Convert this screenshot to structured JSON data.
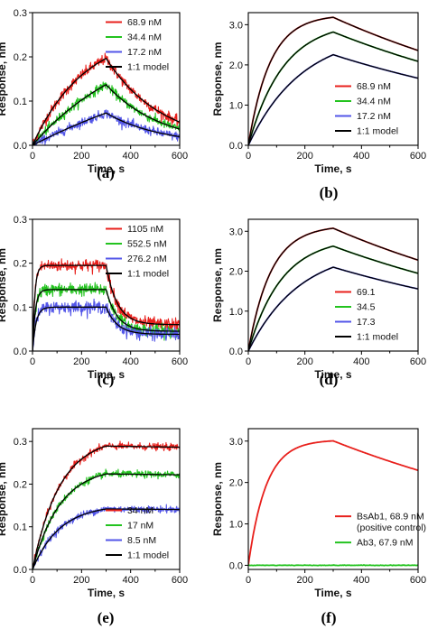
{
  "chart_data": [
    {
      "panel": "(a)",
      "type": "line",
      "xlabel": "Time, s",
      "ylabel": "Response, nm",
      "xlim": [
        0,
        600
      ],
      "ylim": [
        0,
        0.3
      ],
      "xticks": [
        0,
        200,
        400,
        600
      ],
      "yticks": [
        0.0,
        0.1,
        0.2,
        0.3
      ],
      "legend_position": "top-right",
      "series": [
        {
          "name": "68.9 nM",
          "color": "#e8201c",
          "kind": "noisy",
          "Rmax": 0.26,
          "kobs": 0.0047,
          "kd": 0.0044,
          "noise": 0.006
        },
        {
          "name": "34.4 nM",
          "color": "#23c31f",
          "kind": "noisy",
          "Rmax": 0.26,
          "kobs": 0.0025,
          "kd": 0.0044,
          "noise": 0.005
        },
        {
          "name": "17.2 nM",
          "color": "#5356e8",
          "kind": "noisy",
          "Rmax": 0.26,
          "kobs": 0.0011,
          "kd": 0.0044,
          "noise": 0.005
        },
        {
          "name": "1:1 model",
          "color": "#000000",
          "kind": "model"
        }
      ]
    },
    {
      "panel": "(b)",
      "type": "line",
      "xlabel": "Time, s",
      "ylabel": "Response, nm",
      "xlim": [
        0,
        600
      ],
      "ylim": [
        0,
        3.3
      ],
      "xticks": [
        0,
        200,
        400,
        600
      ],
      "yticks": [
        0.0,
        1.0,
        2.0,
        3.0
      ],
      "legend_position": "bottom-right",
      "series": [
        {
          "name": "68.9 nM",
          "color": "#e8201c",
          "kind": "smooth",
          "Rmax": 3.25,
          "kobs": 0.013,
          "kd": 0.001,
          "noise": 0
        },
        {
          "name": "34.4 nM",
          "color": "#23c31f",
          "kind": "smooth",
          "Rmax": 3.09,
          "kobs": 0.0081,
          "kd": 0.001,
          "noise": 0
        },
        {
          "name": "17.2 nM",
          "color": "#5356e8",
          "kind": "smooth",
          "Rmax": 2.83,
          "kobs": 0.0053,
          "kd": 0.001,
          "noise": 0
        },
        {
          "name": "1:1 model",
          "color": "#000000",
          "kind": "model"
        }
      ]
    },
    {
      "panel": "(c)",
      "type": "line",
      "xlabel": "Time, s",
      "ylabel": "Response, nm",
      "xlim": [
        0,
        600
      ],
      "ylim": [
        0,
        0.3
      ],
      "xticks": [
        0,
        200,
        400,
        600
      ],
      "yticks": [
        0.0,
        0.1,
        0.2,
        0.3
      ],
      "legend_position": "top-right",
      "series": [
        {
          "name": "1105 nM",
          "color": "#e8201c",
          "kind": "noisy",
          "Rmax": 0.195,
          "kobs": 0.11,
          "kd": 0.022,
          "plateau": 0.06,
          "noise": 0.007
        },
        {
          "name": "552.5 nM",
          "color": "#23c31f",
          "kind": "noisy",
          "Rmax": 0.14,
          "kobs": 0.09,
          "kd": 0.022,
          "plateau": 0.045,
          "noise": 0.007
        },
        {
          "name": "276.2 nM",
          "color": "#5356e8",
          "kind": "noisy",
          "Rmax": 0.1,
          "kobs": 0.07,
          "kd": 0.022,
          "plateau": 0.038,
          "noise": 0.007
        },
        {
          "name": "1:1 model",
          "color": "#000000",
          "kind": "model"
        }
      ]
    },
    {
      "panel": "(d)",
      "type": "line",
      "xlabel": "Time, s",
      "ylabel": "Response, nm",
      "xlim": [
        0,
        600
      ],
      "ylim": [
        0,
        3.3
      ],
      "xticks": [
        0,
        200,
        400,
        600
      ],
      "yticks": [
        0.0,
        1.0,
        2.0,
        3.0
      ],
      "legend_position": "bottom-right",
      "series": [
        {
          "name": "69.1",
          "color": "#e8201c",
          "kind": "smooth",
          "Rmax": 3.15,
          "kobs": 0.0125,
          "kd": 0.001,
          "noise": 0
        },
        {
          "name": "34.5",
          "color": "#23c31f",
          "kind": "smooth",
          "Rmax": 2.85,
          "kobs": 0.0085,
          "kd": 0.001,
          "noise": 0
        },
        {
          "name": "17.3",
          "color": "#5356e8",
          "kind": "smooth",
          "Rmax": 2.6,
          "kobs": 0.0055,
          "kd": 0.001,
          "noise": 0
        },
        {
          "name": "1:1 model",
          "color": "#000000",
          "kind": "model"
        }
      ]
    },
    {
      "panel": "(e)",
      "type": "line",
      "xlabel": "Time, s",
      "ylabel": "Response, nm",
      "xlim": [
        0,
        600
      ],
      "ylim": [
        0,
        0.33
      ],
      "xticks": [
        0,
        200,
        400,
        600
      ],
      "yticks": [
        0.0,
        0.1,
        0.2,
        0.3
      ],
      "legend_position": "bottom-right",
      "series": [
        {
          "name": "34 nM",
          "color": "#e8201c",
          "kind": "noisy",
          "Rmax": 0.31,
          "kobs": 0.009,
          "kd": 3e-05,
          "noise": 0.004
        },
        {
          "name": "17 nM",
          "color": "#23c31f",
          "kind": "noisy",
          "Rmax": 0.24,
          "kobs": 0.009,
          "kd": 3e-05,
          "noise": 0.004
        },
        {
          "name": "8.5 nM",
          "color": "#5356e8",
          "kind": "noisy",
          "Rmax": 0.152,
          "kobs": 0.009,
          "kd": 3e-05,
          "noise": 0.004
        },
        {
          "name": "1:1 model",
          "color": "#000000",
          "kind": "model"
        }
      ]
    },
    {
      "panel": "(f)",
      "type": "line",
      "xlabel": "Time, s",
      "ylabel": "Response, nm",
      "xlim": [
        0,
        600
      ],
      "ylim": [
        -0.1,
        3.3
      ],
      "xticks": [
        0,
        200,
        400,
        600
      ],
      "yticks": [
        0.0,
        1.0,
        2.0,
        3.0
      ],
      "legend_position": "bottom-right",
      "series": [
        {
          "name": "BsAb1, 68.9 nM\n(positive control)",
          "color": "#e8201c",
          "kind": "smooth",
          "Rmax": 3.03,
          "kobs": 0.016,
          "kd": 0.0009,
          "noise": 0
        },
        {
          "name": "Ab3, 67.9 nM",
          "color": "#23c31f",
          "kind": "flat",
          "Rmax": 0.0,
          "kobs": 0.01,
          "kd": 0.001,
          "noise": 0.008
        }
      ]
    }
  ]
}
